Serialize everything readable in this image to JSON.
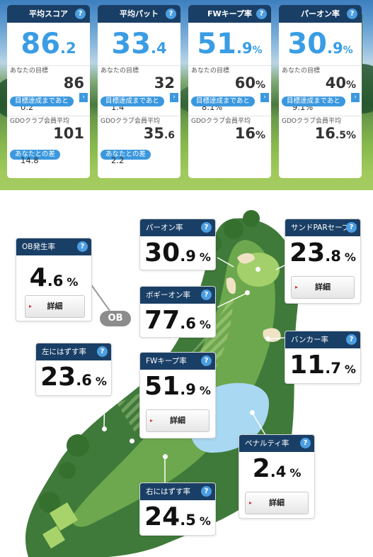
{
  "summary": [
    {
      "title": "平均スコア",
      "value_int": "86",
      "value_dec": ".2",
      "value_unit": "",
      "goal_label": "あなたの目標",
      "goal_int": "86",
      "goal_dec": "",
      "goal_unit": "",
      "remain_label": "目標達成まであと",
      "remain": "0.2",
      "avg_label": "GDOクラブ会員平均",
      "avg_int": "101",
      "avg_dec": "",
      "avg_unit": "",
      "diff_label": "あなたとの差",
      "diff": "14.8"
    },
    {
      "title": "平均パット",
      "value_int": "33",
      "value_dec": ".4",
      "value_unit": "",
      "goal_label": "あなたの目標",
      "goal_int": "32",
      "goal_dec": "",
      "goal_unit": "",
      "remain_label": "目標達成まであと",
      "remain": "1.4",
      "avg_label": "GDOクラブ会員平均",
      "avg_int": "35",
      "avg_dec": ".6",
      "avg_unit": "",
      "diff_label": "あなたとの差",
      "diff": "2.2"
    },
    {
      "title": "FWキープ率",
      "value_int": "51",
      "value_dec": ".9",
      "value_unit": "%",
      "goal_label": "あなたの目標",
      "goal_int": "60",
      "goal_dec": "",
      "goal_unit": "%",
      "remain_label": "目標達成まであと",
      "remain": "8.1%",
      "avg_label": "GDOクラブ会員平均",
      "avg_int": "16",
      "avg_dec": "",
      "avg_unit": "%"
    },
    {
      "title": "パーオン率",
      "value_int": "30",
      "value_dec": ".9",
      "value_unit": "%",
      "goal_label": "あなたの目標",
      "goal_int": "40",
      "goal_dec": "",
      "goal_unit": "%",
      "remain_label": "目標達成まであと",
      "remain": "9.1%",
      "avg_label": "GDOクラブ会員平均",
      "avg_int": "16",
      "avg_dec": ".5",
      "avg_unit": "%"
    }
  ],
  "help_glyph": "?",
  "arrow_glyph": "›",
  "ob_badge": "OB",
  "hole_cards": {
    "ob": {
      "title": "OB発生率",
      "int": "4",
      "dec": ".6",
      "unit": "%",
      "detail": "詳細"
    },
    "par_on": {
      "title": "パーオン率",
      "int": "30",
      "dec": ".9",
      "unit": "%"
    },
    "bogey_on": {
      "title": "ボギーオン率",
      "int": "77",
      "dec": ".6",
      "unit": "%"
    },
    "fw_keep": {
      "title": "FWキープ率",
      "int": "51",
      "dec": ".9",
      "unit": "%",
      "detail": "詳細"
    },
    "left_miss": {
      "title": "左にはずす率",
      "int": "23",
      "dec": ".6",
      "unit": "%"
    },
    "right_miss": {
      "title": "右にはずす率",
      "int": "24",
      "dec": ".5",
      "unit": "%"
    },
    "sand_save": {
      "title": "サンドPARセーブ率",
      "int": "23",
      "dec": ".8",
      "unit": "%",
      "detail": "詳細"
    },
    "bunker": {
      "title": "バンカー率",
      "int": "11",
      "dec": ".7",
      "unit": "%"
    },
    "penalty": {
      "title": "ペナルティ率",
      "int": "2",
      "dec": ".4",
      "unit": "%",
      "detail": "詳細"
    }
  },
  "colors": {
    "header_navy": "#1a3f66",
    "accent_blue": "#3a9de4",
    "pill_blue": "#3b98de",
    "ob_gray": "#8c8c8c",
    "fairway": "#6ea84e",
    "rough": "#3f7a3a",
    "green": "#a3d06a",
    "water": "#a9d8f2",
    "sand": "#efe3c4"
  }
}
